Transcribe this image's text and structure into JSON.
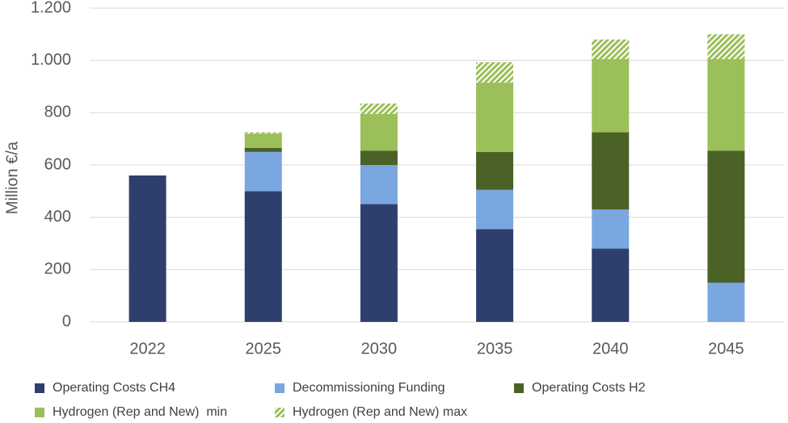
{
  "chart_data": {
    "type": "stacked_bar",
    "ylabel": "Million €/a",
    "categories": [
      "2022",
      "2025",
      "2030",
      "2035",
      "2040",
      "2045"
    ],
    "series": [
      {
        "name": "Operating Costs CH4",
        "color": "#2e3f6e",
        "values": [
          560,
          500,
          450,
          355,
          280,
          0
        ]
      },
      {
        "name": "Decommissioning Funding",
        "color": "#7ba7e0",
        "values": [
          0,
          150,
          150,
          150,
          150,
          150
        ]
      },
      {
        "name": "Operating Costs H2",
        "color": "#4b6227",
        "values": [
          0,
          15,
          55,
          145,
          295,
          505
        ]
      },
      {
        "name": "Hydrogen (Rep and New)  min",
        "color": "#9bbf59",
        "values": [
          0,
          55,
          140,
          265,
          280,
          350
        ]
      },
      {
        "name": "Hydrogen (Rep and New) max",
        "color": "#9bbf59",
        "hatched": true,
        "values": [
          0,
          5,
          40,
          78,
          75,
          95
        ]
      }
    ],
    "ylim": [
      0,
      1200
    ],
    "yticks": [
      0,
      200,
      400,
      600,
      800,
      {
        "value": 1000,
        "label": "1.000"
      },
      {
        "value": 1200,
        "label": "1.200"
      }
    ],
    "grid": true,
    "legend": "bottom"
  }
}
